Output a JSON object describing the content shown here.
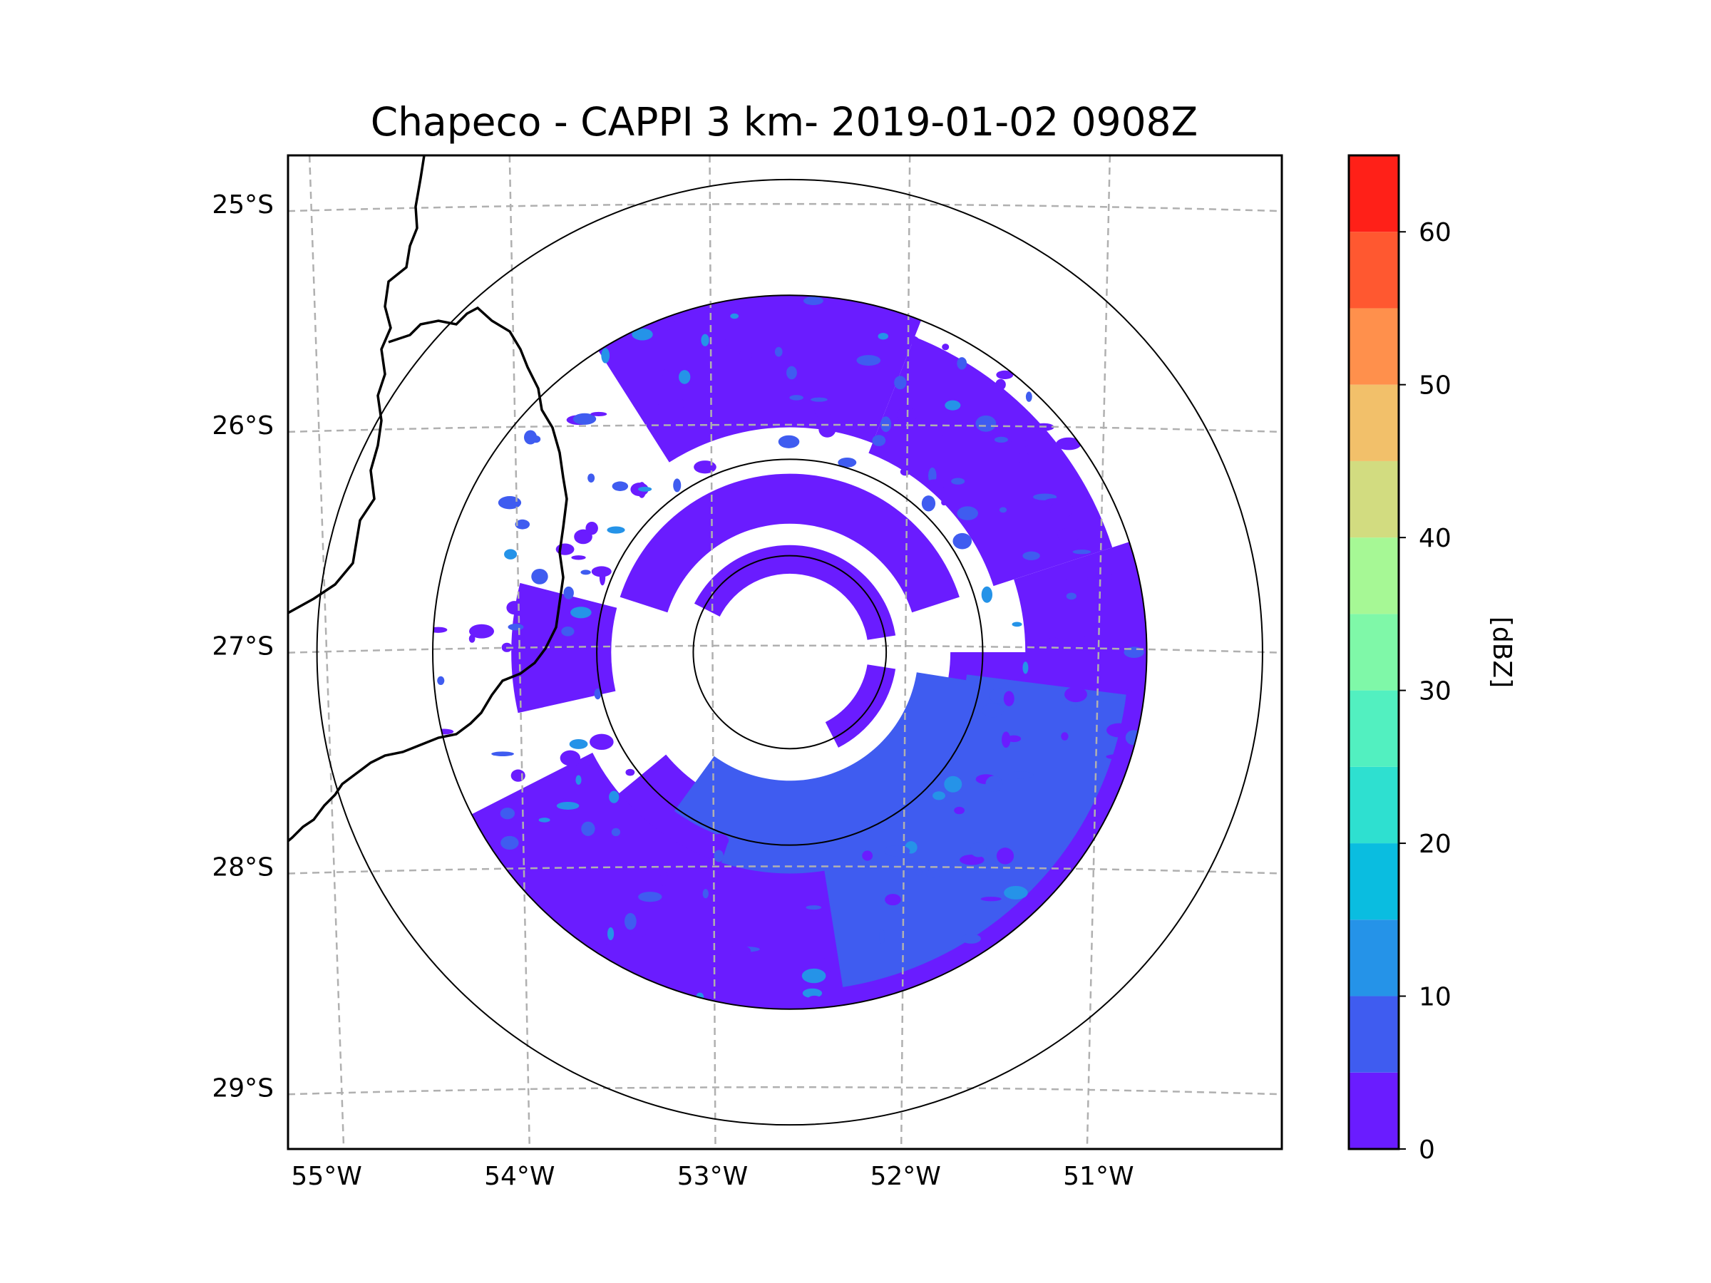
{
  "title": "Chapeco - CAPPI 3 km- 2019-01-02 0908Z",
  "map": {
    "lon_range": [
      -55.2,
      -50.05
    ],
    "lat_range": [
      -29.28,
      -24.78
    ],
    "lon_ticks": [
      {
        "value": -55,
        "label": "55°W"
      },
      {
        "value": -54,
        "label": "54°W"
      },
      {
        "value": -53,
        "label": "53°W"
      },
      {
        "value": -52,
        "label": "52°W"
      },
      {
        "value": -51,
        "label": "51°W"
      }
    ],
    "lat_ticks": [
      {
        "value": -25,
        "label": "25°S"
      },
      {
        "value": -26,
        "label": "26°S"
      },
      {
        "value": -27,
        "label": "27°S"
      },
      {
        "value": -28,
        "label": "28°S"
      },
      {
        "value": -29,
        "label": "29°S"
      }
    ],
    "radar_center": {
      "lon": -52.6,
      "lat": -27.03
    },
    "range_rings_deg": [
      0.5,
      1.0,
      1.85,
      2.45
    ],
    "coverage_radius_deg": 1.85
  },
  "colorbar": {
    "label": "[dBZ]",
    "min": 0,
    "max": 65,
    "step": 5,
    "ticks": [
      {
        "value": 0,
        "label": "0"
      },
      {
        "value": 10,
        "label": "10"
      },
      {
        "value": 20,
        "label": "20"
      },
      {
        "value": 30,
        "label": "30"
      },
      {
        "value": 40,
        "label": "40"
      },
      {
        "value": 50,
        "label": "50"
      },
      {
        "value": 60,
        "label": "60"
      }
    ],
    "colors": [
      "#6a1cff",
      "#3f5cf0",
      "#2593e8",
      "#0abde0",
      "#2ee0d0",
      "#52f0c0",
      "#7ff8a8",
      "#a6f895",
      "#d2dc80",
      "#f2c06a",
      "#ff904c",
      "#ff5830",
      "#ff2018"
    ]
  },
  "echo_colors": {
    "weak": "#6a1cff",
    "moderate": "#3f5cf0",
    "light": "#2593e8"
  }
}
